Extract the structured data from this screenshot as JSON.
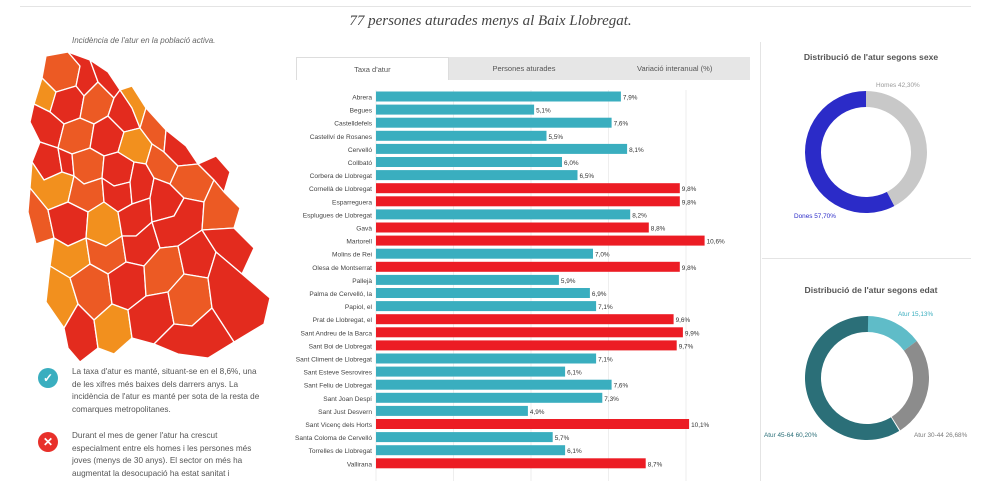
{
  "header": {
    "title": "77 persones aturades menys al Baix Llobregat."
  },
  "map": {
    "caption": "Incidència de l'atur en la població activa.",
    "colors": {
      "high": "#e32b1e",
      "mid": "#ec5a24",
      "low": "#f2901e",
      "border": "#ffffff"
    }
  },
  "notes": [
    {
      "icon": "check-icon",
      "color": "#3aaebf",
      "symbol": "✓",
      "text": "La taxa d'atur es manté, situant-se en el 8,6%, una de les xifres més baixes dels darrers anys. La incidència de l'atur es manté per sota de la resta de comarques metropolitanes."
    },
    {
      "icon": "cross-icon",
      "color": "#e8302a",
      "symbol": "✕",
      "text": "Durant el mes de gener l'atur ha crescut especialment entre els homes i les persones més joves (menys de 30 anys). El sector on més ha augmentat la desocupació ha estat sanitat i"
    }
  ],
  "tabs": [
    {
      "label": "Taxa d'atur",
      "active": true
    },
    {
      "label": "Persones aturades",
      "active": false
    },
    {
      "label": "Variació interanual (%)",
      "active": false
    }
  ],
  "chart_data": [
    {
      "type": "bar",
      "orientation": "horizontal",
      "colors": {
        "below": "#3aaebf",
        "above": "#ec1c24"
      },
      "categories": [
        "Abrera",
        "Begues",
        "Castelldefels",
        "Castellví de Rosanes",
        "Cervelló",
        "Collbató",
        "Corbera de Llobregat",
        "Cornellà de Llobregat",
        "Esparreguera",
        "Esplugues de Llobregat",
        "Gavà",
        "Martorell",
        "Molins de Rei",
        "Olesa de Montserrat",
        "Pallejà",
        "Palma de Cervelló, la",
        "Papiol, el",
        "Prat de Llobregat, el",
        "Sant Andreu de la Barca",
        "Sant Boi de Llobregat",
        "Sant Climent de Llobregat",
        "Sant Esteve Sesrovires",
        "Sant Feliu de Llobregat",
        "Sant Joan Despí",
        "Sant Just Desvern",
        "Sant Vicenç dels Horts",
        "Santa Coloma de Cervelló",
        "Torrelles de Llobregat",
        "Vallirana"
      ],
      "values": [
        7.9,
        5.1,
        7.6,
        5.5,
        8.1,
        6.0,
        6.5,
        9.8,
        9.8,
        8.2,
        8.8,
        10.6,
        7.0,
        9.8,
        5.9,
        6.9,
        7.1,
        9.6,
        9.9,
        9.7,
        7.1,
        6.1,
        7.6,
        7.3,
        4.9,
        10.1,
        5.7,
        6.1,
        8.7
      ],
      "labels": [
        "7,9%",
        "5,1%",
        "7,6%",
        "5,5%",
        "8,1%",
        "6,0%",
        "6,5%",
        "9,8%",
        "9,8%",
        "8,2%",
        "8,8%",
        "10,6%",
        "7,0%",
        "9,8%",
        "5,9%",
        "6,9%",
        "7,1%",
        "9,6%",
        "9,9%",
        "9,7%",
        "7,1%",
        "6,1%",
        "7,6%",
        "7,3%",
        "4,9%",
        "10,1%",
        "5,7%",
        "6,1%",
        "8,7%"
      ],
      "xlim": [
        0,
        11
      ]
    },
    {
      "type": "pie",
      "title": "Distribució de l'atur segons sexe",
      "slices": [
        {
          "label": "Dones 57,70%",
          "value": 57.7,
          "color": "#2b2bc8",
          "text_color": "#2b2bc8"
        },
        {
          "label": "Homes 42,30%",
          "value": 42.3,
          "color": "#c8c8c8",
          "text_color": "#9a9a9a"
        }
      ]
    },
    {
      "type": "pie",
      "title": "Distribució de l'atur segons edat",
      "slices": [
        {
          "label": "Atur 15,13%",
          "value": 15.13,
          "color": "#5fbcc8",
          "text_color": "#3aaebf"
        },
        {
          "label": "Atur 30-44 26,68%",
          "value": 26.68,
          "color": "#8c8c8c",
          "text_color": "#7a7a7a"
        },
        {
          "label": "Atur 45-64 60,20%",
          "value": 60.2,
          "color": "#2b6f78",
          "text_color": "#2b6f78"
        }
      ]
    }
  ]
}
